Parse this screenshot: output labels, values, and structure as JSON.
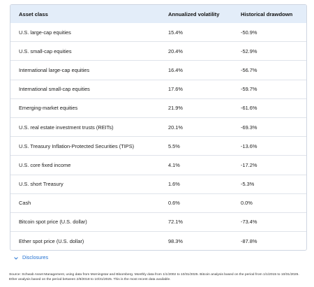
{
  "table": {
    "headers": [
      "Asset class",
      "Annualized volatility",
      "Historical drawdown"
    ],
    "rows": [
      {
        "asset": "U.S. large-cap equities",
        "volatility": "15.4%",
        "drawdown": "-50.9%"
      },
      {
        "asset": "U.S. small-cap equities",
        "volatility": "20.4%",
        "drawdown": "-52.9%"
      },
      {
        "asset": "International large-cap equities",
        "volatility": "16.4%",
        "drawdown": "-56.7%"
      },
      {
        "asset": "International small-cap equities",
        "volatility": "17.6%",
        "drawdown": "-59.7%"
      },
      {
        "asset": "Emerging-market equities",
        "volatility": "21.9%",
        "drawdown": "-61.6%"
      },
      {
        "asset": "U.S. real estate investment trusts (REITs)",
        "volatility": "20.1%",
        "drawdown": "-69.3%"
      },
      {
        "asset": "U.S. Treasury Inflation-Protected Securities (TIPS)",
        "volatility": "5.5%",
        "drawdown": "-13.6%"
      },
      {
        "asset": "U.S. core fixed income",
        "volatility": "4.1%",
        "drawdown": "-17.2%"
      },
      {
        "asset": "U.S. short Treasury",
        "volatility": "1.6%",
        "drawdown": "-5.3%"
      },
      {
        "asset": "Cash",
        "volatility": "0.6%",
        "drawdown": "0.0%"
      },
      {
        "asset": "Bitcoin spot price (U.S. dollar)",
        "volatility": "72.1%",
        "drawdown": "-73.4%"
      },
      {
        "asset": "Ether spot price (U.S. dollar)",
        "volatility": "98.3%",
        "drawdown": "-87.8%"
      }
    ]
  },
  "disclosures": {
    "label": "Disclosures",
    "icon": "chevron-down-icon",
    "color": "#1f6fd1"
  },
  "source_note": "Source: Schwab Asset Management, using data from Morningstar and Bloomberg. Monthly data from 1/1/2002 to 10/31/2025. Bitcoin analysis based on the period from 1/1/2015 to 10/31/2025. Ether analysis based on the period between 2/8/2018 to 10/31/2025. This is the most recent data available.",
  "colors": {
    "header_bg": "#e3edf9",
    "border": "#cfd6e2",
    "link": "#1f6fd1"
  }
}
